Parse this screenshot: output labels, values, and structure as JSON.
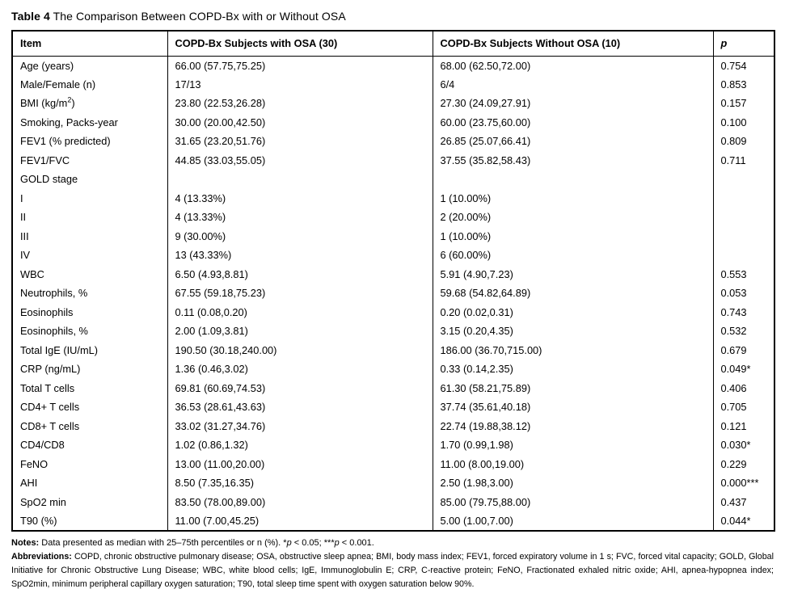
{
  "title": {
    "label": "Table 4",
    "text": " The Comparison Between COPD-Bx with or Without OSA"
  },
  "table": {
    "headers": [
      "Item",
      "COPD-Bx Subjects with OSA (30)",
      "COPD-Bx Subjects Without OSA (10)",
      "p"
    ],
    "rows": [
      {
        "item": "Age (years)",
        "osa": "66.00 (57.75,75.25)",
        "no_osa": "68.00 (62.50,72.00)",
        "p": "0.754"
      },
      {
        "item": "Male/Female (n)",
        "osa": "17/13",
        "no_osa": "6/4",
        "p": "0.853"
      },
      {
        "item": "BMI (kg/m²)",
        "osa": "23.80 (22.53,26.28)",
        "no_osa": "27.30 (24.09,27.91)",
        "p": "0.157"
      },
      {
        "item": "Smoking, Packs-year",
        "osa": "30.00 (20.00,42.50)",
        "no_osa": "60.00 (23.75,60.00)",
        "p": "0.100"
      },
      {
        "item": "FEV1 (% predicted)",
        "osa": "31.65 (23.20,51.76)",
        "no_osa": "26.85 (25.07,66.41)",
        "p": "0.809"
      },
      {
        "item": "FEV1/FVC",
        "osa": "44.85 (33.03,55.05)",
        "no_osa": "37.55 (35.82,58.43)",
        "p": "0.711"
      },
      {
        "item": "GOLD stage",
        "osa": "",
        "no_osa": "",
        "p": ""
      },
      {
        "item": "I",
        "osa": "4 (13.33%)",
        "no_osa": "1 (10.00%)",
        "p": ""
      },
      {
        "item": "II",
        "osa": "4 (13.33%)",
        "no_osa": "2 (20.00%)",
        "p": ""
      },
      {
        "item": "III",
        "osa": "9 (30.00%)",
        "no_osa": "1 (10.00%)",
        "p": ""
      },
      {
        "item": "IV",
        "osa": "13 (43.33%)",
        "no_osa": "6 (60.00%)",
        "p": ""
      },
      {
        "item": "WBC",
        "osa": "6.50 (4.93,8.81)",
        "no_osa": "5.91 (4.90,7.23)",
        "p": "0.553"
      },
      {
        "item": "Neutrophils, %",
        "osa": "67.55 (59.18,75.23)",
        "no_osa": "59.68 (54.82,64.89)",
        "p": "0.053"
      },
      {
        "item": "Eosinophils",
        "osa": "0.11 (0.08,0.20)",
        "no_osa": "0.20 (0.02,0.31)",
        "p": "0.743"
      },
      {
        "item": "Eosinophils, %",
        "osa": "2.00 (1.09,3.81)",
        "no_osa": "3.15 (0.20,4.35)",
        "p": "0.532"
      },
      {
        "item": "Total IgE (IU/mL)",
        "osa": "190.50 (30.18,240.00)",
        "no_osa": "186.00 (36.70,715.00)",
        "p": "0.679"
      },
      {
        "item": "CRP (ng/mL)",
        "osa": "1.36 (0.46,3.02)",
        "no_osa": "0.33 (0.14,2.35)",
        "p": "0.049*"
      },
      {
        "item": "Total T cells",
        "osa": "69.81 (60.69,74.53)",
        "no_osa": "61.30 (58.21,75.89)",
        "p": "0.406"
      },
      {
        "item": "CD4+ T cells",
        "osa": "36.53 (28.61,43.63)",
        "no_osa": "37.74 (35.61,40.18)",
        "p": "0.705"
      },
      {
        "item": "CD8+ T cells",
        "osa": "33.02 (31.27,34.76)",
        "no_osa": "22.74 (19.88,38.12)",
        "p": "0.121"
      },
      {
        "item": "CD4/CD8",
        "osa": "1.02 (0.86,1.32)",
        "no_osa": "1.70 (0.99,1.98)",
        "p": "0.030*"
      },
      {
        "item": "FeNO",
        "osa": "13.00 (11.00,20.00)",
        "no_osa": "11.00 (8.00,19.00)",
        "p": "0.229"
      },
      {
        "item": "AHI",
        "osa": "8.50 (7.35,16.35)",
        "no_osa": "2.50 (1.98,3.00)",
        "p": "0.000***"
      },
      {
        "item": "SpO2 min",
        "osa": "83.50 (78.00,89.00)",
        "no_osa": "85.00 (79.75,88.00)",
        "p": "0.437"
      },
      {
        "item": "T90 (%)",
        "osa": "11.00 (7.00,45.25)",
        "no_osa": "5.00 (1.00,7.00)",
        "p": "0.044*"
      }
    ]
  },
  "notes": {
    "label": "Notes:",
    "parts": [
      " Data presented as median with 25–75th percentiles or n (%). *",
      "p",
      " < 0.05; ***",
      "p",
      " < 0.001."
    ]
  },
  "abbreviations": {
    "label": "Abbreviations:",
    "text": " COPD, chronic obstructive pulmonary disease; OSA, obstructive sleep apnea; BMI, body mass index; FEV1, forced expiratory volume in 1 s; FVC, forced vital capacity; GOLD, Global Initiative for Chronic Obstructive Lung Disease; WBC, white blood cells; IgE, Immunoglobulin E; CRP, C-reactive protein; FeNO, Fractionated exhaled nitric oxide; AHI, apnea-hypopnea index; SpO2min, minimum peripheral capillary oxygen saturation; T90, total sleep time spent with oxygen saturation below 90%."
  }
}
